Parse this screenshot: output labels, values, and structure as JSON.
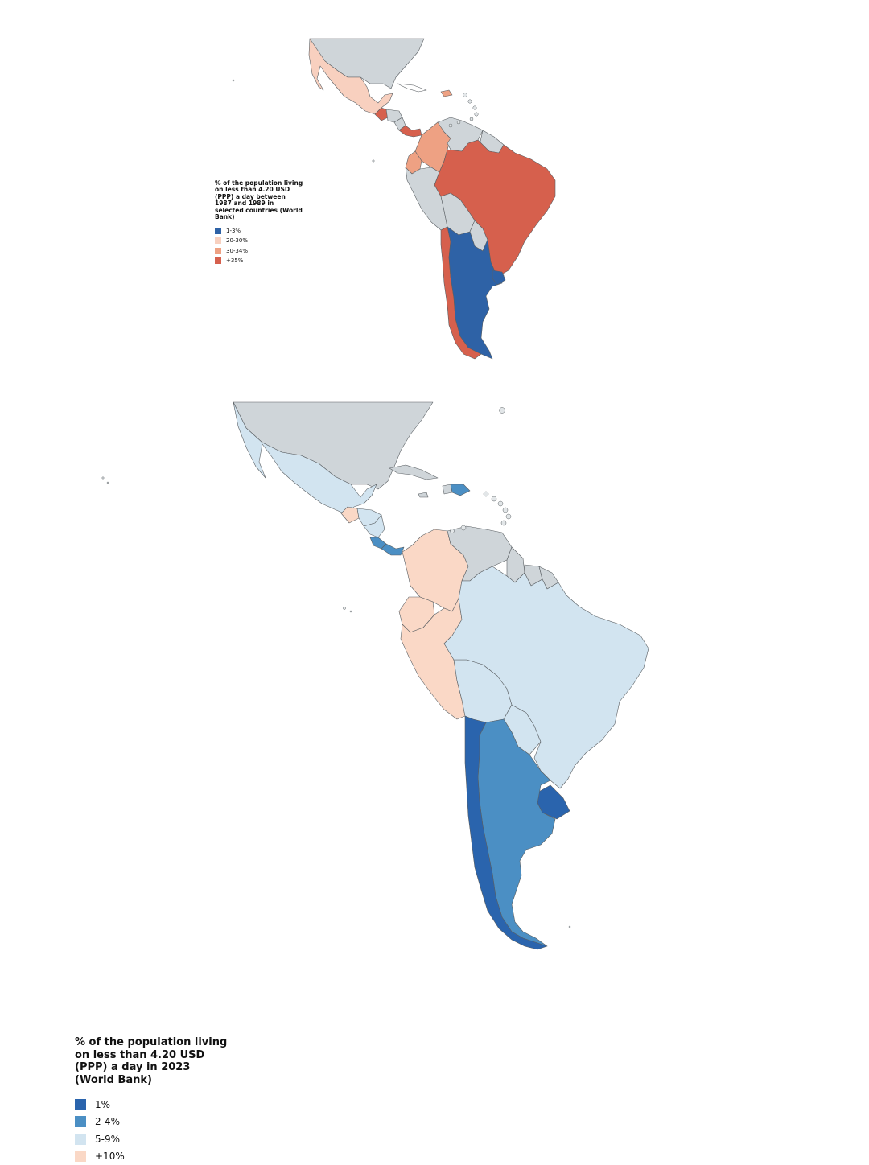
{
  "colors": {
    "no_data": "#cfd5d9",
    "ocean": "#ffffff",
    "border": "#5a5f63"
  },
  "map_top": {
    "legend": {
      "title": "% of the population living on less than 4.20 USD (PPP) a day between 1987 and 1989 in selected countries (World Bank)",
      "items": [
        {
          "label": "1-3%",
          "color": "#2e62a6"
        },
        {
          "label": "20-30%",
          "color": "#f8d0bf"
        },
        {
          "label": "30-34%",
          "color": "#eea183"
        },
        {
          "label": "+35%",
          "color": "#d6604d"
        }
      ]
    }
  },
  "map_bottom": {
    "legend": {
      "title": "% of the population living on less than 4.20 USD (PPP) a day in 2023 (World Bank)",
      "items": [
        {
          "label": "1%",
          "color": "#2a64ad"
        },
        {
          "label": "2-4%",
          "color": "#4b8fc4"
        },
        {
          "label": "5-9%",
          "color": "#d2e4f0"
        },
        {
          "label": "+10%",
          "color": "#fad8c6"
        }
      ]
    }
  }
}
